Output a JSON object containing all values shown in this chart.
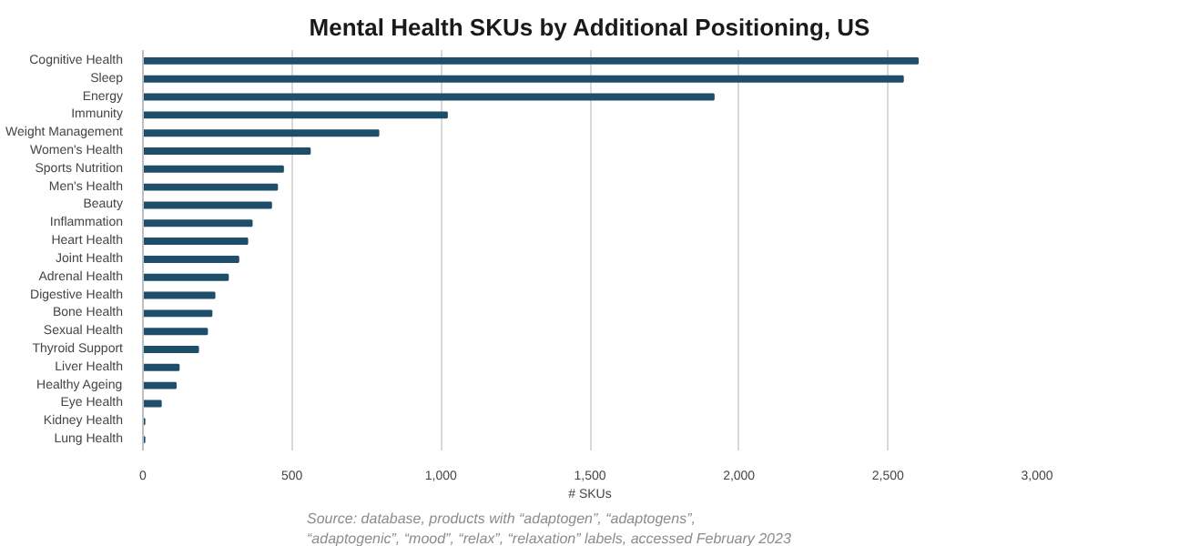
{
  "chart_data": {
    "type": "bar",
    "orientation": "horizontal",
    "title": "Mental Health SKUs by Additional Positioning, US",
    "xlabel": "# SKUs",
    "categories": [
      "Cognitive Health",
      "Sleep",
      "Energy",
      "Immunity",
      "Weight Management",
      "Women's Health",
      "Sports Nutrition",
      "Men's Health",
      "Beauty",
      "Inflammation",
      "Heart Health",
      "Joint Health",
      "Adrenal Health",
      "Digestive Health",
      "Bone Health",
      "Sexual Health",
      "Thyroid Support",
      "Liver Health",
      "Healthy Ageing",
      "Eye Health",
      "Kidney Health",
      "Lung Health"
    ],
    "values": [
      2600,
      2550,
      1915,
      1020,
      790,
      560,
      470,
      450,
      430,
      365,
      350,
      320,
      285,
      240,
      230,
      215,
      185,
      120,
      110,
      60,
      5,
      5
    ],
    "color": "#1f4e6b",
    "xlim": [
      0,
      3000
    ],
    "xticks": [
      0,
      {
        "value": 500,
        "label": "500"
      },
      {
        "value": 1000,
        "label": "1,000"
      },
      {
        "value": 1500,
        "label": "1,500"
      },
      {
        "value": 2000,
        "label": "2,000"
      },
      {
        "value": 2500,
        "label": "2,500"
      },
      {
        "value": 3000,
        "label": "3,000"
      }
    ],
    "grid": "x",
    "annotations": [
      "Source: database, products with “adaptogen”, “adaptogens”, “adaptogenic”, “mood”, “relax”, “relaxation” labels, accessed February 2023"
    ]
  }
}
